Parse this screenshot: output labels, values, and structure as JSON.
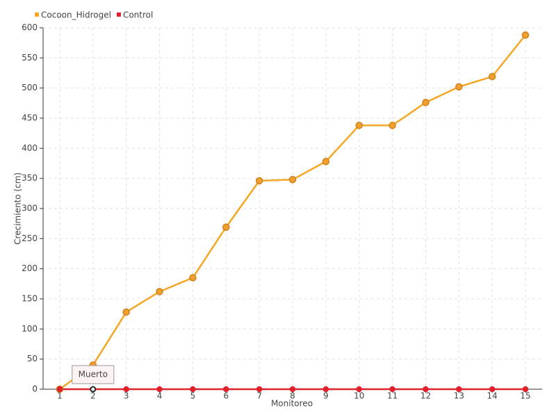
{
  "chart_data": {
    "type": "line",
    "x_label": "Monitoreo",
    "y_label": "Crecimiento (cm)",
    "categories": [
      "1",
      "2",
      "3",
      "4",
      "5",
      "6",
      "7",
      "8",
      "9",
      "10",
      "11",
      "12",
      "13",
      "14",
      "15"
    ],
    "series": [
      {
        "name": "Cocoon_Hidrogel",
        "color": "#f5a623",
        "values": [
          0,
          40,
          128,
          162,
          185,
          269,
          346,
          348,
          378,
          438,
          438,
          476,
          502,
          519,
          588
        ]
      },
      {
        "name": "Control",
        "color": "#e0202a",
        "values": [
          0,
          0,
          0,
          0,
          0,
          0,
          0,
          0,
          0,
          0,
          0,
          0,
          0,
          0,
          0
        ]
      }
    ],
    "annotation": "Muerto",
    "ylim": [
      0,
      600
    ],
    "yticks": [
      0,
      50,
      100,
      150,
      200,
      250,
      300,
      350,
      400,
      450,
      500,
      550,
      600
    ],
    "grid": true,
    "legend": "top-left"
  }
}
